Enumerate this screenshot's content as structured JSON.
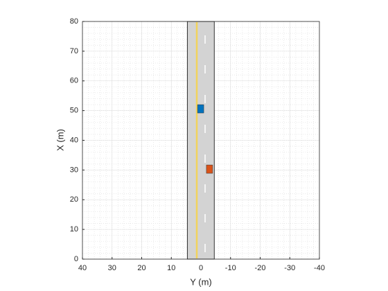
{
  "chart_data": {
    "type": "scenario",
    "xlabel": "Y (m)",
    "ylabel": "X (m)",
    "xlim": [
      40,
      -40
    ],
    "xticks": [
      40,
      30,
      20,
      10,
      0,
      -10,
      -20,
      -30,
      -40
    ],
    "ylim": [
      0,
      80
    ],
    "yticks": [
      0,
      10,
      20,
      30,
      40,
      50,
      60,
      70,
      80
    ],
    "grid": true,
    "minor_grid": true,
    "road": {
      "edges": [
        4.6,
        -4.5
      ],
      "range": [
        0,
        80
      ],
      "center_line": 1.4,
      "lane_line": -1.4,
      "color": "#d3d3d3",
      "center_color": "#f2d35c"
    },
    "vehicles": {
      "colors": [
        "#0072bd",
        "#d95319"
      ],
      "y": [
        0.1,
        -2.9
      ],
      "x": [
        50.6,
        30.3
      ],
      "length": [
        2.8,
        2.8
      ],
      "width": [
        2.1,
        2.1
      ]
    }
  }
}
